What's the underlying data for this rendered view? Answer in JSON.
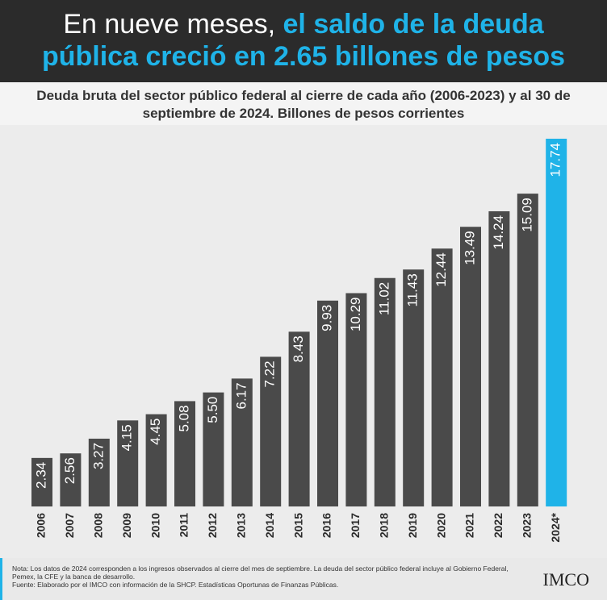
{
  "header": {
    "title_lead": "En nueve meses,",
    "title_highlight": "el saldo de la deuda pública creció en 2.65 billones de pesos"
  },
  "chart_data": {
    "type": "bar",
    "subtitle": "Deuda bruta del sector público federal al cierre de cada año (2006-2023) y al 30 de septiembre de 2024. Billones de pesos corrientes",
    "categories": [
      "2006",
      "2007",
      "2008",
      "2009",
      "2010",
      "2011",
      "2012",
      "2013",
      "2014",
      "2015",
      "2016",
      "2017",
      "2018",
      "2019",
      "2020",
      "2021",
      "2022",
      "2023",
      "2024*"
    ],
    "values": [
      2.34,
      2.56,
      3.27,
      4.15,
      4.45,
      5.08,
      5.5,
      6.17,
      7.22,
      8.43,
      9.93,
      10.29,
      11.02,
      11.43,
      12.44,
      13.49,
      14.24,
      15.09,
      17.74
    ],
    "value_labels": [
      "2.34",
      "2.56",
      "3.27",
      "4.15",
      "4.45",
      "5.08",
      "5.50",
      "6.17",
      "7.22",
      "8.43",
      "9.93",
      "10.29",
      "11.02",
      "11.43",
      "12.44",
      "13.49",
      "14.24",
      "15.09",
      "17.74"
    ],
    "colors": [
      "#4a4a4a",
      "#4a4a4a",
      "#4a4a4a",
      "#4a4a4a",
      "#4a4a4a",
      "#4a4a4a",
      "#4a4a4a",
      "#4a4a4a",
      "#4a4a4a",
      "#4a4a4a",
      "#4a4a4a",
      "#4a4a4a",
      "#4a4a4a",
      "#4a4a4a",
      "#4a4a4a",
      "#4a4a4a",
      "#4a4a4a",
      "#4a4a4a",
      "#1fb3e8"
    ]
  },
  "footer": {
    "note": "Nota: Los datos de 2024 corresponden a los ingresos observados al cierre del mes de septiembre. La deuda del sector público federal incluye al Gobierno Federal, Pemex, la CFE y la banca de desarrollo.",
    "source": "Fuente: Elaborado por el IMCO con información de la SHCP. Estadísticas Oportunas de Finanzas Públicas.",
    "logo": "IMCO"
  }
}
